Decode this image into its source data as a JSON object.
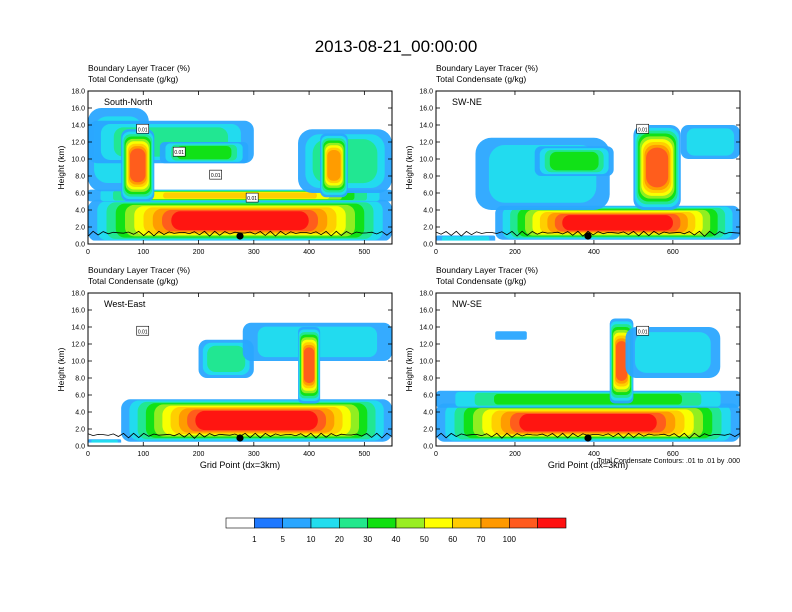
{
  "title": "2013-08-21_00:00:00",
  "colors": [
    "#ffffff",
    "#1e78ff",
    "#2aa6ff",
    "#22ddee",
    "#22e88c",
    "#11e011",
    "#99ee22",
    "#ffff00",
    "#ffcc00",
    "#ff9900",
    "#ff5a1e",
    "#ff1111"
  ],
  "colorbar": {
    "labels": [
      "1",
      "5",
      "10",
      "20",
      "30",
      "40",
      "50",
      "60",
      "70",
      "100"
    ]
  },
  "contour_note": "Total Condensate Contours: .01 to .01 by .000",
  "chart_data": [
    {
      "type": "heatmap",
      "panel": "South-North",
      "subtitle1": "Boundary Layer Tracer   (%)",
      "subtitle2": "Total Condensate   (g/kg)",
      "xlabel": "",
      "ylabel": "Height (km)",
      "xlim": [
        0,
        550
      ],
      "ylim": [
        0,
        18
      ],
      "xticks": [
        "0",
        "100",
        "200",
        "300",
        "400",
        "500"
      ],
      "yticks": [
        "0.0",
        "2.0",
        "4.0",
        "6.0",
        "8.0",
        "10.0",
        "12.0",
        "14.0",
        "16.0",
        "18.0"
      ],
      "contour_labels": [
        "0.01",
        "0.01",
        "0.01",
        "0.01"
      ],
      "marker_x": 275,
      "blobs": [
        {
          "x": [
            0,
            550
          ],
          "z": [
            0.3,
            5.2
          ],
          "level": 11
        },
        {
          "x": [
            0,
            550
          ],
          "z": [
            5.0,
            6.4
          ],
          "level": 8
        },
        {
          "x": [
            0,
            110
          ],
          "z": [
            6.2,
            16.0
          ],
          "level": 3
        },
        {
          "x": [
            0,
            300
          ],
          "z": [
            9.5,
            14.5
          ],
          "level": 4
        },
        {
          "x": [
            130,
            290
          ],
          "z": [
            9.5,
            12.0
          ],
          "level": 5
        },
        {
          "x": [
            60,
            120
          ],
          "z": [
            5.0,
            13.5
          ],
          "level": 10
        },
        {
          "x": [
            380,
            550
          ],
          "z": [
            6.0,
            13.5
          ],
          "level": 4
        },
        {
          "x": [
            420,
            470
          ],
          "z": [
            5.5,
            13.0
          ],
          "level": 9
        }
      ]
    },
    {
      "type": "heatmap",
      "panel": "SW-NE",
      "subtitle1": "Boundary Layer Tracer   (%)",
      "subtitle2": "Total Condensate   (g/kg)",
      "xlabel": "",
      "ylabel": "Height (km)",
      "xlim": [
        0,
        770
      ],
      "ylim": [
        0,
        18
      ],
      "xticks": [
        "0",
        "200",
        "400",
        "600"
      ],
      "yticks": [
        "0.0",
        "2.0",
        "4.0",
        "6.0",
        "8.0",
        "10.0",
        "12.0",
        "14.0",
        "16.0",
        "18.0"
      ],
      "contour_labels": [
        "0.01"
      ],
      "marker_x": 385,
      "blobs": [
        {
          "x": [
            150,
            770
          ],
          "z": [
            0.5,
            4.5
          ],
          "level": 11
        },
        {
          "x": [
            0,
            150
          ],
          "z": [
            0.0,
            1.0
          ],
          "level": 3
        },
        {
          "x": [
            100,
            440
          ],
          "z": [
            4.0,
            12.5
          ],
          "level": 3
        },
        {
          "x": [
            250,
            450
          ],
          "z": [
            8.0,
            11.5
          ],
          "level": 5
        },
        {
          "x": [
            500,
            620
          ],
          "z": [
            4.0,
            14.0
          ],
          "level": 10
        },
        {
          "x": [
            620,
            770
          ],
          "z": [
            10.0,
            14.0
          ],
          "level": 3
        }
      ]
    },
    {
      "type": "heatmap",
      "panel": "West-East",
      "subtitle1": "Boundary Layer Tracer   (%)",
      "subtitle2": "Total Condensate   (g/kg)",
      "xlabel": "Grid Point (dx=3km)",
      "ylabel": "Height (km)",
      "xlim": [
        0,
        550
      ],
      "ylim": [
        0,
        18
      ],
      "xticks": [
        "0",
        "100",
        "200",
        "300",
        "400",
        "500"
      ],
      "yticks": [
        "0.0",
        "2.0",
        "4.0",
        "6.0",
        "8.0",
        "10.0",
        "12.0",
        "14.0",
        "16.0",
        "18.0"
      ],
      "contour_labels": [
        "0.01"
      ],
      "marker_x": 275,
      "blobs": [
        {
          "x": [
            60,
            550
          ],
          "z": [
            0.5,
            5.5
          ],
          "level": 11
        },
        {
          "x": [
            0,
            60
          ],
          "z": [
            0.0,
            0.8
          ],
          "level": 3
        },
        {
          "x": [
            200,
            300
          ],
          "z": [
            8.0,
            12.5
          ],
          "level": 4
        },
        {
          "x": [
            280,
            550
          ],
          "z": [
            10.0,
            14.5
          ],
          "level": 3
        },
        {
          "x": [
            380,
            420
          ],
          "z": [
            5.0,
            14.0
          ],
          "level": 10
        }
      ]
    },
    {
      "type": "heatmap",
      "panel": "NW-SE",
      "subtitle1": "Boundary Layer Tracer   (%)",
      "subtitle2": "Total Condensate   (g/kg)",
      "xlabel": "Grid Point (dx=3km)",
      "ylabel": "Height (km)",
      "xlim": [
        0,
        770
      ],
      "ylim": [
        0,
        18
      ],
      "xticks": [
        "0",
        "200",
        "400",
        "600"
      ],
      "yticks": [
        "0.0",
        "2.0",
        "4.0",
        "6.0",
        "8.0",
        "10.0",
        "12.0",
        "14.0",
        "16.0",
        "18.0"
      ],
      "contour_labels": [
        "0.01"
      ],
      "marker_x": 385,
      "blobs": [
        {
          "x": [
            0,
            770
          ],
          "z": [
            0.5,
            5.0
          ],
          "level": 11
        },
        {
          "x": [
            0,
            770
          ],
          "z": [
            4.5,
            6.5
          ],
          "level": 5
        },
        {
          "x": [
            440,
            500
          ],
          "z": [
            5.0,
            15.0
          ],
          "level": 10
        },
        {
          "x": [
            480,
            720
          ],
          "z": [
            8.0,
            14.0
          ],
          "level": 3
        },
        {
          "x": [
            150,
            230
          ],
          "z": [
            12.5,
            13.5
          ],
          "level": 2
        }
      ]
    }
  ]
}
